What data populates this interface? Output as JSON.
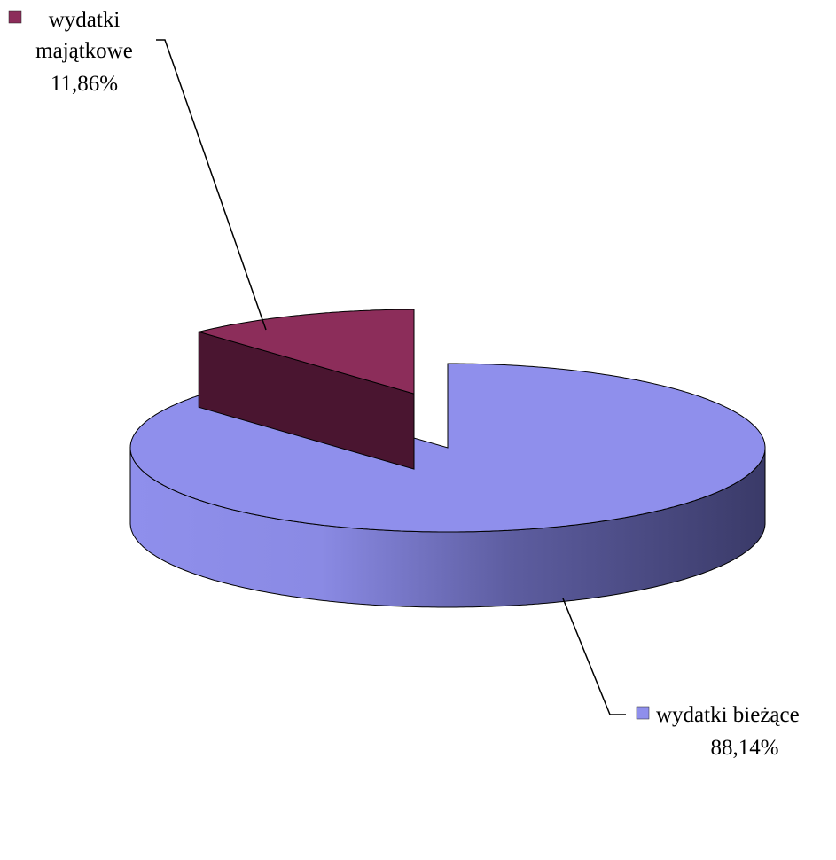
{
  "chart_data": {
    "type": "pie",
    "style": "3d-exploded",
    "title": "",
    "categories": [
      "wydatki majątkowe",
      "wydatki bieżące"
    ],
    "values": [
      11.86,
      88.14
    ],
    "value_labels": [
      "11,86%",
      "88,14%"
    ],
    "colors": [
      "#8c2d5a",
      "#8f8fec"
    ],
    "legend": "inline-with-leader-lines",
    "grid": false
  },
  "labels": {
    "majatkowe": {
      "line1": "wydatki",
      "line2": "majątkowe",
      "percent": "11,86%"
    },
    "biezace": {
      "name": "wydatki bieżące",
      "percent": "88,14%"
    }
  }
}
